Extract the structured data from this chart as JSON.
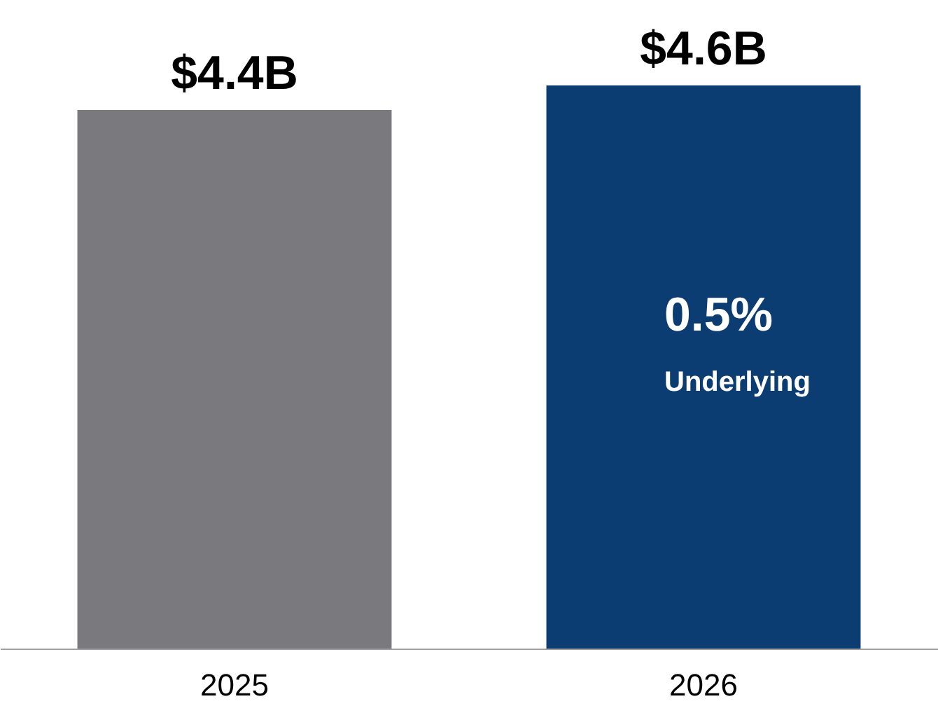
{
  "chart_data": {
    "type": "bar",
    "categories": [
      "2025",
      "2026"
    ],
    "values": [
      4.4,
      4.6
    ],
    "colors": [
      "#7a7a7e",
      "#0b3c72"
    ],
    "value_labels": [
      "$4.4B",
      "$4.6B"
    ],
    "annotations": [
      "0.5%",
      "Underlying"
    ],
    "grid": false
  }
}
